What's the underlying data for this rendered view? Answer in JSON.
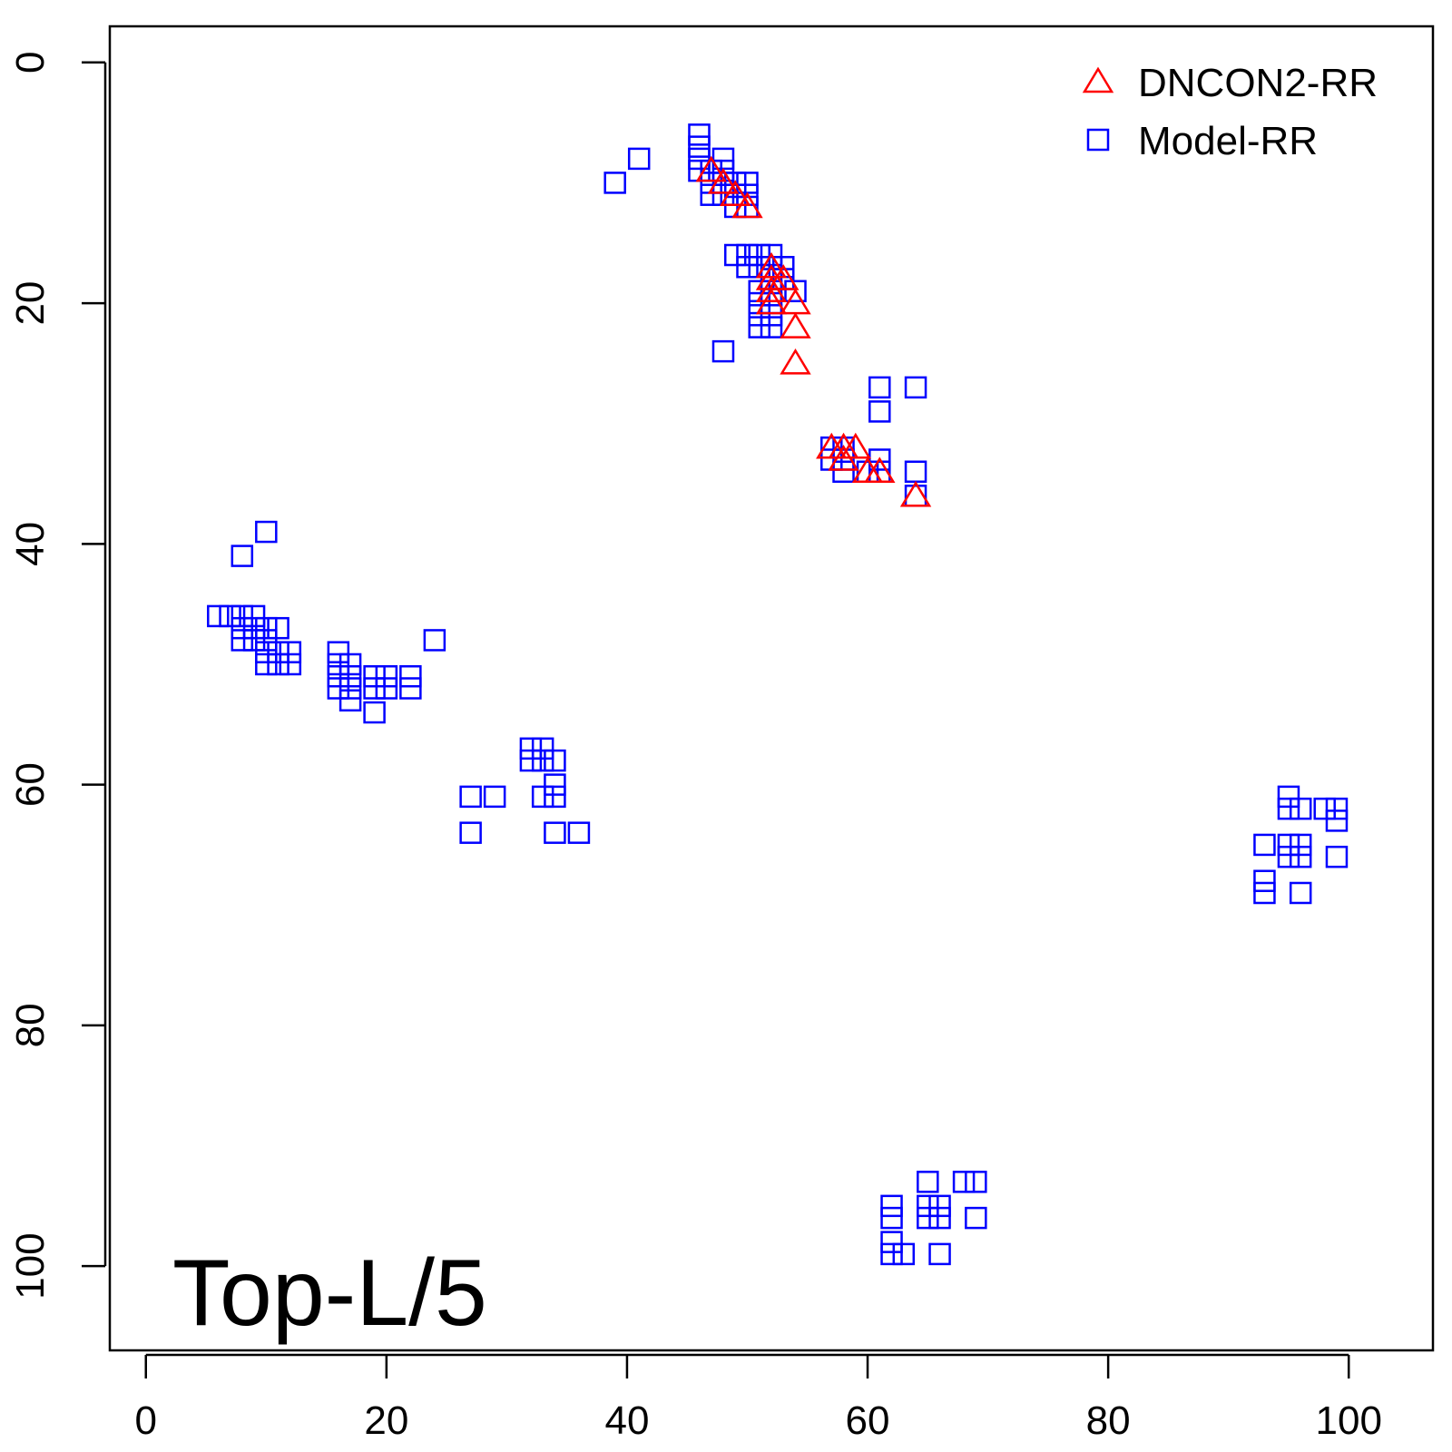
{
  "chart_data": {
    "type": "scatter",
    "title": "",
    "xlabel": "",
    "ylabel": "",
    "annotation": "Top-L/5",
    "xlim": [
      -3,
      107
    ],
    "ylim": [
      -3,
      107
    ],
    "y_reversed": true,
    "x_ticks": [
      "0",
      "20",
      "40",
      "60",
      "80",
      "100"
    ],
    "x_tick_values": [
      0,
      20,
      40,
      60,
      80,
      100
    ],
    "y_ticks": [
      "0",
      "20",
      "40",
      "60",
      "80",
      "100"
    ],
    "y_tick_values": [
      0,
      20,
      40,
      60,
      80,
      100
    ],
    "grid": false,
    "legend_position": "top-right",
    "series": [
      {
        "name": "DNCON2-RR",
        "marker": "triangle",
        "color": "#ff0000",
        "points": [
          [
            47,
            9
          ],
          [
            48,
            10
          ],
          [
            49,
            11
          ],
          [
            50,
            12
          ],
          [
            52,
            17
          ],
          [
            52,
            18
          ],
          [
            53,
            18
          ],
          [
            52,
            19
          ],
          [
            52,
            20
          ],
          [
            54,
            20
          ],
          [
            54,
            22
          ],
          [
            54,
            25
          ],
          [
            57,
            32
          ],
          [
            58,
            32
          ],
          [
            59,
            32
          ],
          [
            58,
            33
          ],
          [
            60,
            34
          ],
          [
            61,
            34
          ],
          [
            64,
            36
          ]
        ]
      },
      {
        "name": "Model-RR",
        "marker": "square",
        "color": "#0000ff",
        "points": [
          [
            46,
            6
          ],
          [
            46,
            7
          ],
          [
            46,
            8
          ],
          [
            46,
            9
          ],
          [
            47,
            9
          ],
          [
            47,
            10
          ],
          [
            47,
            11
          ],
          [
            48,
            8
          ],
          [
            48,
            9
          ],
          [
            48,
            10
          ],
          [
            48,
            11
          ],
          [
            49,
            10
          ],
          [
            49,
            11
          ],
          [
            49,
            12
          ],
          [
            50,
            10
          ],
          [
            50,
            11
          ],
          [
            50,
            12
          ],
          [
            41,
            8
          ],
          [
            39,
            10
          ],
          [
            49,
            16
          ],
          [
            50,
            16
          ],
          [
            50,
            17
          ],
          [
            51,
            16
          ],
          [
            51,
            17
          ],
          [
            52,
            16
          ],
          [
            52,
            17
          ],
          [
            52,
            18
          ],
          [
            52,
            19
          ],
          [
            53,
            17
          ],
          [
            53,
            18
          ],
          [
            54,
            19
          ],
          [
            51,
            19
          ],
          [
            51,
            20
          ],
          [
            51,
            21
          ],
          [
            51,
            22
          ],
          [
            52,
            20
          ],
          [
            52,
            21
          ],
          [
            52,
            22
          ],
          [
            48,
            24
          ],
          [
            61,
            27
          ],
          [
            64,
            27
          ],
          [
            61,
            29
          ],
          [
            57,
            32
          ],
          [
            57,
            33
          ],
          [
            58,
            32
          ],
          [
            58,
            33
          ],
          [
            58,
            34
          ],
          [
            60,
            34
          ],
          [
            61,
            33
          ],
          [
            61,
            34
          ],
          [
            64,
            34
          ],
          [
            64,
            36
          ],
          [
            6,
            46
          ],
          [
            7,
            46
          ],
          [
            8,
            46
          ],
          [
            8,
            47
          ],
          [
            8,
            48
          ],
          [
            9,
            46
          ],
          [
            9,
            47
          ],
          [
            9,
            48
          ],
          [
            10,
            47
          ],
          [
            10,
            48
          ],
          [
            10,
            49
          ],
          [
            10,
            50
          ],
          [
            11,
            47
          ],
          [
            11,
            49
          ],
          [
            11,
            50
          ],
          [
            12,
            49
          ],
          [
            12,
            50
          ],
          [
            8,
            41
          ],
          [
            10,
            39
          ],
          [
            16,
            49
          ],
          [
            16,
            50
          ],
          [
            16,
            51
          ],
          [
            16,
            52
          ],
          [
            17,
            50
          ],
          [
            17,
            51
          ],
          [
            17,
            52
          ],
          [
            17,
            53
          ],
          [
            19,
            51
          ],
          [
            19,
            52
          ],
          [
            20,
            51
          ],
          [
            20,
            52
          ],
          [
            22,
            51
          ],
          [
            22,
            52
          ],
          [
            19,
            54
          ],
          [
            24,
            48
          ],
          [
            32,
            57
          ],
          [
            32,
            58
          ],
          [
            33,
            57
          ],
          [
            33,
            58
          ],
          [
            33,
            61
          ],
          [
            34,
            58
          ],
          [
            34,
            60
          ],
          [
            34,
            61
          ],
          [
            34,
            64
          ],
          [
            36,
            64
          ],
          [
            27,
            61
          ],
          [
            29,
            61
          ],
          [
            27,
            64
          ],
          [
            95,
            61
          ],
          [
            95,
            62
          ],
          [
            96,
            62
          ],
          [
            98,
            62
          ],
          [
            99,
            62
          ],
          [
            99,
            63
          ],
          [
            93,
            65
          ],
          [
            95,
            65
          ],
          [
            95,
            66
          ],
          [
            96,
            65
          ],
          [
            96,
            66
          ],
          [
            99,
            66
          ],
          [
            93,
            68
          ],
          [
            93,
            69
          ],
          [
            96,
            69
          ],
          [
            65,
            93
          ],
          [
            68,
            93
          ],
          [
            69,
            93
          ],
          [
            62,
            95
          ],
          [
            62,
            96
          ],
          [
            65,
            95
          ],
          [
            65,
            96
          ],
          [
            66,
            95
          ],
          [
            66,
            96
          ],
          [
            69,
            96
          ],
          [
            62,
            98
          ],
          [
            62,
            99
          ],
          [
            63,
            99
          ],
          [
            66,
            99
          ]
        ]
      }
    ]
  }
}
